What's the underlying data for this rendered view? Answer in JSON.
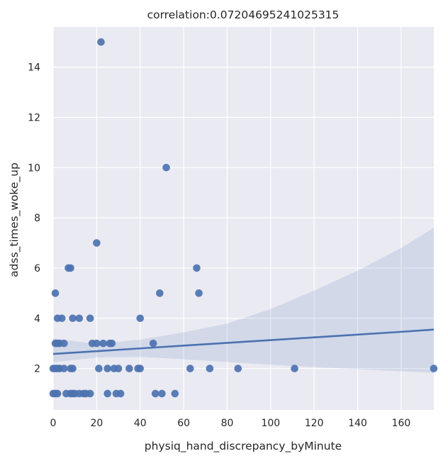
{
  "chart_data": {
    "type": "scatter",
    "title": "correlation:0.07204695241025315",
    "xlabel": "physiq_hand_discrepancy_byMinute",
    "ylabel": "adss_times_woke_up",
    "xlim": [
      0,
      175
    ],
    "ylim": [
      0.35,
      15.6
    ],
    "xticks": [
      0,
      20,
      40,
      60,
      80,
      100,
      120,
      140,
      160
    ],
    "yticks": [
      2,
      4,
      6,
      8,
      10,
      12,
      14
    ],
    "grid": true,
    "background": "#eaeaf2",
    "grid_color": "#ffffff",
    "point_color": "#4c72b0",
    "line_color": "#4c72b0",
    "band_color": "#4c72b0",
    "points": [
      [
        22,
        15
      ],
      [
        52,
        10
      ],
      [
        20,
        7
      ],
      [
        7,
        6
      ],
      [
        8,
        6
      ],
      [
        66,
        6
      ],
      [
        1,
        5
      ],
      [
        49,
        5
      ],
      [
        67,
        5
      ],
      [
        2,
        4
      ],
      [
        4,
        4
      ],
      [
        9,
        4
      ],
      [
        12,
        4
      ],
      [
        17,
        4
      ],
      [
        40,
        4
      ],
      [
        1,
        3
      ],
      [
        2,
        3
      ],
      [
        3,
        3
      ],
      [
        5,
        3
      ],
      [
        18,
        3
      ],
      [
        20,
        3
      ],
      [
        23,
        3
      ],
      [
        26,
        3
      ],
      [
        27,
        3
      ],
      [
        46,
        3
      ],
      [
        0,
        2
      ],
      [
        1,
        2
      ],
      [
        2,
        2
      ],
      [
        3,
        2
      ],
      [
        5,
        2
      ],
      [
        8,
        2
      ],
      [
        9,
        2
      ],
      [
        21,
        2
      ],
      [
        25,
        2
      ],
      [
        28,
        2
      ],
      [
        30,
        2
      ],
      [
        35,
        2
      ],
      [
        39,
        2
      ],
      [
        40,
        2
      ],
      [
        63,
        2
      ],
      [
        72,
        2
      ],
      [
        85,
        2
      ],
      [
        111,
        2
      ],
      [
        175,
        2
      ],
      [
        0,
        1
      ],
      [
        1,
        1
      ],
      [
        2,
        1
      ],
      [
        6,
        1
      ],
      [
        8,
        1
      ],
      [
        9,
        1
      ],
      [
        10,
        1
      ],
      [
        12,
        1
      ],
      [
        14,
        1
      ],
      [
        15,
        1
      ],
      [
        17,
        1
      ],
      [
        25,
        1
      ],
      [
        29,
        1
      ],
      [
        31,
        1
      ],
      [
        47,
        1
      ],
      [
        50,
        1
      ],
      [
        56,
        1
      ]
    ],
    "regression": {
      "x": [
        0,
        20,
        40,
        60,
        80,
        100,
        120,
        140,
        160,
        175
      ],
      "y": [
        2.58,
        2.69,
        2.8,
        2.91,
        3.02,
        3.13,
        3.24,
        3.35,
        3.46,
        3.55
      ],
      "ci_lower": [
        2.25,
        2.44,
        2.46,
        2.37,
        2.26,
        2.15,
        2.06,
        1.97,
        1.89,
        1.83
      ],
      "ci_upper": [
        3.2,
        2.98,
        3.15,
        3.44,
        3.79,
        4.37,
        5.1,
        5.9,
        6.8,
        7.6
      ]
    }
  }
}
